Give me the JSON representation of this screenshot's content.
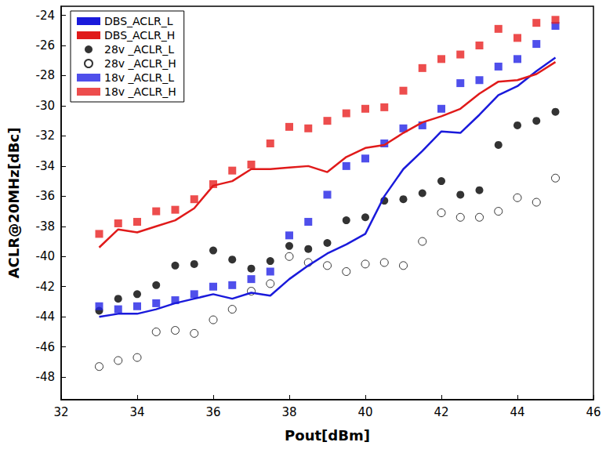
{
  "chart_data": {
    "type": "line",
    "x_label": "Pout[dBm]",
    "y_label": "ACLR@20MHz[dBc]",
    "xlim": [
      32,
      46
    ],
    "xticks": [
      32,
      34,
      36,
      38,
      40,
      42,
      44,
      46
    ],
    "ylim": [
      -49.5,
      -23.4
    ],
    "yticks": [
      -48,
      -46,
      -44,
      -42,
      -40,
      -38,
      -36,
      -34,
      -32,
      -30,
      -28,
      -26,
      -24
    ],
    "grid": false,
    "legend": "upper left",
    "x": [
      33,
      33.5,
      34,
      34.5,
      35,
      35.5,
      36,
      36.5,
      37,
      37.5,
      38,
      38.5,
      39,
      39.5,
      40,
      40.5,
      41,
      41.5,
      42,
      42.5,
      43,
      43.5,
      44,
      44.5,
      45
    ],
    "series": [
      {
        "name": "DBS_ACLR_L",
        "type": "line",
        "color": "#1a1adb",
        "line_style": "solid",
        "values": [
          -44,
          -43.8,
          -43.8,
          -43.5,
          -43.1,
          -42.8,
          -42.5,
          -42.8,
          -42.4,
          -42.6,
          -41.5,
          -40.6,
          -39.8,
          -39.2,
          -38.5,
          -36,
          -34.2,
          -33,
          -31.7,
          -31.8,
          -30.6,
          -29.3,
          -28.7,
          -27.7,
          -26.8
        ]
      },
      {
        "name": "DBS_ACLR_H",
        "type": "line",
        "color": "#e01a1a",
        "line_style": "solid",
        "values": [
          -39.4,
          -38.2,
          -38.4,
          -38,
          -37.6,
          -36.8,
          -35.3,
          -35,
          -34.2,
          -34.2,
          -34.1,
          -34,
          -34.4,
          -33.4,
          -32.8,
          -32.6,
          -31.8,
          -31.1,
          -30.7,
          -30.2,
          -29.2,
          -28.4,
          -28.3,
          -27.9,
          -27.1
        ]
      },
      {
        "name": "28v _ACLR_L",
        "type": "scatter",
        "color": "#000000",
        "marker": "circle",
        "values": [
          -43.6,
          -42.8,
          -42.5,
          -41.9,
          -40.6,
          -40.5,
          -39.6,
          -40.2,
          -40.8,
          -40.3,
          -39.3,
          -39.5,
          -39.1,
          -37.6,
          -37.4,
          -36.3,
          -36.2,
          -35.8,
          -35,
          -35.9,
          -35.6,
          -32.6,
          -31.3,
          -31,
          -30.4
        ]
      },
      {
        "name": "28v _ACLR_H",
        "type": "scatter",
        "color": "#000000",
        "marker": "open_circle",
        "values": [
          -47.3,
          -46.9,
          -46.7,
          -45,
          -44.9,
          -45.1,
          -44.2,
          -43.5,
          -42.3,
          -41.8,
          -40,
          -40.4,
          -40.6,
          -41,
          -40.5,
          -40.4,
          -40.6,
          -39,
          -37.1,
          -37.4,
          -37.4,
          -37,
          -36.1,
          -36.4,
          -34.8
        ]
      },
      {
        "name": "18v _ACLR_L",
        "type": "scatter",
        "color": "#2323e6",
        "marker": "square",
        "values": [
          -43.3,
          -43.5,
          -43.3,
          -43.1,
          -42.9,
          -42.5,
          -42,
          -41.9,
          -41.5,
          -41,
          -38.6,
          -37.7,
          -35.9,
          -34,
          -33.5,
          -32.5,
          -31.5,
          -31.3,
          -30.2,
          -28.5,
          -28.3,
          -27.4,
          -26.9,
          -25.9,
          -24.7
        ]
      },
      {
        "name": "18v _ACLR_H",
        "type": "scatter",
        "color": "#e82020",
        "marker": "square",
        "values": [
          -38.5,
          -37.8,
          -37.7,
          -37,
          -36.9,
          -36.2,
          -35.2,
          -34.3,
          -33.9,
          -32.5,
          -31.4,
          -31.5,
          -31,
          -30.5,
          -30.2,
          -30.1,
          -29,
          -27.5,
          -26.9,
          -26.6,
          -26,
          -24.9,
          -25.5,
          -24.5,
          -24.3
        ]
      }
    ]
  }
}
